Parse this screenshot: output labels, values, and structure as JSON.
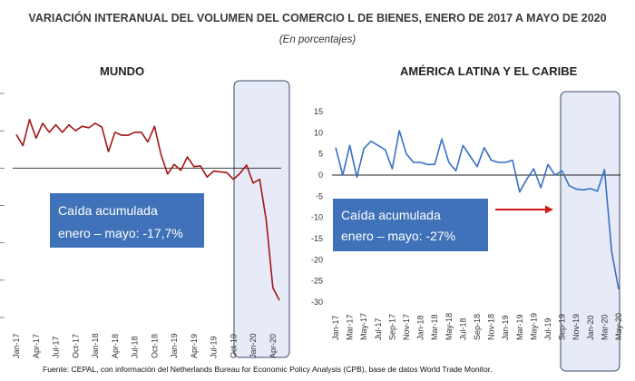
{
  "header": {
    "title": "VARIACIÓN INTERANUAL DEL VOLUMEN DEL COMERCIO L DE BIENES, ENERO DE 2017 A MAYO DE 2020",
    "subtitle": "(En porcentajes)"
  },
  "footer": {
    "source": "Fuente: CEPAL, con información del Netherlands Bureau for Economic Policy Analysis (CPB), base de datos World Trade Monitor."
  },
  "chart_data": [
    {
      "type": "line",
      "title": "MUNDO",
      "color": "#a31515",
      "ylim": [
        -20,
        10
      ],
      "yticks": [],
      "x_tick_labels": [
        "Jan-17",
        "Apr-17",
        "Jul-17",
        "Oct-17",
        "Jan-18",
        "Apr-18",
        "Jul-18",
        "Oct-18",
        "Jan-19",
        "Apr-19",
        "Jul-19",
        "Oct-19",
        "Jan-20",
        "Apr-20"
      ],
      "x": [
        "Jan-17",
        "Feb-17",
        "Mar-17",
        "Apr-17",
        "May-17",
        "Jun-17",
        "Jul-17",
        "Aug-17",
        "Sep-17",
        "Oct-17",
        "Nov-17",
        "Dec-17",
        "Jan-18",
        "Feb-18",
        "Mar-18",
        "Apr-18",
        "May-18",
        "Jun-18",
        "Jul-18",
        "Aug-18",
        "Sep-18",
        "Oct-18",
        "Nov-18",
        "Dec-18",
        "Jan-19",
        "Feb-19",
        "Mar-19",
        "Apr-19",
        "May-19",
        "Jun-19",
        "Jul-19",
        "Aug-19",
        "Sep-19",
        "Oct-19",
        "Nov-19",
        "Dec-19",
        "Jan-20",
        "Feb-20",
        "Mar-20",
        "Apr-20",
        "May-20"
      ],
      "series": [
        {
          "values": [
            4.5,
            3,
            6.5,
            4,
            6,
            4.8,
            5.8,
            4.8,
            5.8,
            5,
            5.6,
            5.4,
            6,
            5.5,
            2.2,
            4.8,
            4.4,
            4.4,
            4.8,
            4.8,
            3.5,
            5.6,
            1.8,
            -0.8,
            0.5,
            -0.3,
            1.5,
            0.2,
            0.3,
            -1.2,
            -0.4,
            -0.5,
            -0.6,
            -1.5,
            -0.7,
            0.4,
            -2,
            -1.5,
            -7,
            -16,
            -17.7
          ]
        }
      ],
      "highlight_months": [
        "Oct-19",
        "May-20"
      ],
      "annotation": {
        "line1": "Caída acumulada",
        "line2": "enero – mayo: -17,7%"
      }
    },
    {
      "type": "line",
      "title": "AMÉRICA  LATINA Y EL CARIBE",
      "color": "#3a6fc4",
      "ylim": [
        -30,
        15
      ],
      "yticks": [
        15,
        10,
        5,
        0,
        -5,
        -10,
        -15,
        -20,
        -25,
        -30
      ],
      "x_tick_labels": [
        "Jan-17",
        "Mar-17",
        "May-17",
        "Jul-17",
        "Sep-17",
        "Nov-17",
        "Jan-18",
        "Mar-18",
        "May-18",
        "Jul-18",
        "Sep-18",
        "Nov-18",
        "Jan-19",
        "Mar-19",
        "May-19",
        "Jul-19",
        "Sep-19",
        "Nov-19",
        "Jan-20",
        "Mar-20",
        "May-20"
      ],
      "x": [
        "Jan-17",
        "Feb-17",
        "Mar-17",
        "Apr-17",
        "May-17",
        "Jun-17",
        "Jul-17",
        "Aug-17",
        "Sep-17",
        "Oct-17",
        "Nov-17",
        "Dec-17",
        "Jan-18",
        "Feb-18",
        "Mar-18",
        "Apr-18",
        "May-18",
        "Jun-18",
        "Jul-18",
        "Aug-18",
        "Sep-18",
        "Oct-18",
        "Nov-18",
        "Dec-18",
        "Jan-19",
        "Feb-19",
        "Mar-19",
        "Apr-19",
        "May-19",
        "Jun-19",
        "Jul-19",
        "Aug-19",
        "Sep-19",
        "Oct-19",
        "Nov-19",
        "Dec-19",
        "Jan-20",
        "Feb-20",
        "Mar-20",
        "Apr-20",
        "May-20"
      ],
      "series": [
        {
          "values": [
            6.5,
            0,
            7,
            -0.5,
            6.3,
            8,
            7,
            6,
            1.5,
            10.5,
            5,
            3,
            3,
            2.5,
            2.5,
            8.5,
            3,
            1,
            7,
            4.5,
            2,
            6.5,
            3.5,
            3,
            3,
            3.5,
            -4,
            -1,
            1.5,
            -3,
            2.5,
            0,
            1,
            -2.5,
            -3.3,
            -3.5,
            -3.2,
            -3.8,
            1.3,
            -18,
            -27
          ]
        }
      ],
      "highlight_months": [
        "Sep-19",
        "May-20"
      ],
      "annotation": {
        "line1": "Caída acumulada",
        "line2": "enero – mayo: -27%"
      }
    }
  ]
}
